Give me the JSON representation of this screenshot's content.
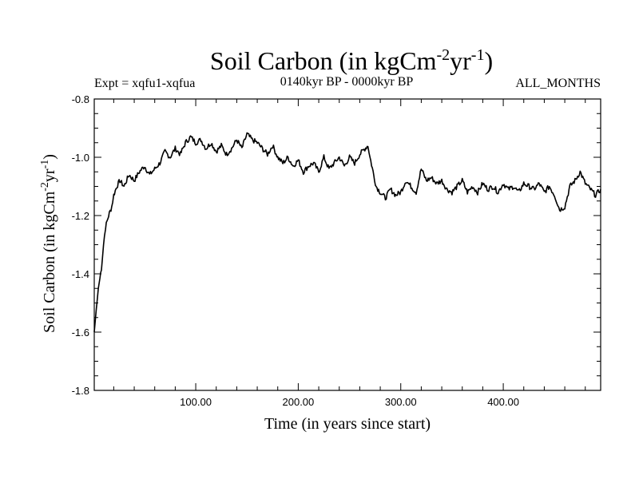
{
  "chart_data": {
    "type": "line",
    "title": "Soil Carbon (in kgCm",
    "title_sup1": "-2",
    "title_mid": "yr",
    "title_sup2": "-1",
    "title_end": ")",
    "subtitle_left": "Expt = xqfu1-xqfua",
    "subtitle_center": "0140kyr BP - 0000kyr BP",
    "subtitle_right": "ALL_MONTHS",
    "xlabel": "Time (in years since start)",
    "ylabel": "Soil Carbon (in kgCm",
    "ylabel_sup1": "-2",
    "ylabel_mid": "yr",
    "ylabel_sup2": "-1",
    "ylabel_end": ")",
    "xlim": [
      1,
      495
    ],
    "ylim": [
      -1.8,
      -0.8
    ],
    "xticks": [
      100,
      200,
      300,
      400
    ],
    "xtick_labels": [
      "100.00",
      "200.00",
      "300.00",
      "400.00"
    ],
    "yticks": [
      -0.8,
      -1.0,
      -1.2,
      -1.4,
      -1.6,
      -1.8
    ],
    "ytick_labels": [
      "-0.8",
      "-1.0",
      "-1.2",
      "-1.4",
      "-1.6",
      "-1.8"
    ],
    "grid": false,
    "series": [
      {
        "name": "soil carbon",
        "x": [
          1,
          3,
          5,
          8,
          10,
          12,
          15,
          18,
          20,
          23,
          26,
          30,
          35,
          40,
          45,
          50,
          55,
          60,
          65,
          70,
          75,
          80,
          85,
          90,
          95,
          100,
          105,
          110,
          115,
          120,
          125,
          130,
          135,
          140,
          145,
          150,
          155,
          160,
          165,
          170,
          175,
          180,
          185,
          190,
          195,
          200,
          205,
          210,
          215,
          220,
          225,
          230,
          235,
          240,
          245,
          250,
          255,
          260,
          265,
          268,
          270,
          273,
          276,
          280,
          285,
          290,
          295,
          300,
          305,
          310,
          315,
          320,
          325,
          330,
          335,
          340,
          345,
          350,
          355,
          360,
          365,
          370,
          375,
          380,
          385,
          390,
          395,
          400,
          405,
          410,
          415,
          420,
          425,
          430,
          435,
          440,
          445,
          450,
          455,
          460,
          465,
          470,
          475,
          480,
          485,
          490,
          495
        ],
        "values": [
          -1.6,
          -1.52,
          -1.45,
          -1.38,
          -1.3,
          -1.24,
          -1.2,
          -1.17,
          -1.13,
          -1.1,
          -1.08,
          -1.1,
          -1.06,
          -1.08,
          -1.05,
          -1.03,
          -1.06,
          -1.04,
          -1.02,
          -0.98,
          -1.0,
          -0.97,
          -0.99,
          -0.95,
          -0.93,
          -0.95,
          -0.94,
          -0.97,
          -0.95,
          -0.98,
          -0.96,
          -0.99,
          -0.97,
          -0.94,
          -0.97,
          -0.92,
          -0.94,
          -0.95,
          -0.97,
          -0.99,
          -0.96,
          -1.0,
          -1.02,
          -1.0,
          -1.03,
          -1.01,
          -1.05,
          -1.03,
          -1.02,
          -1.05,
          -1.0,
          -1.04,
          -1.02,
          -1.0,
          -1.03,
          -1.0,
          -1.02,
          -0.99,
          -0.97,
          -0.96,
          -1.0,
          -1.05,
          -1.1,
          -1.12,
          -1.14,
          -1.11,
          -1.13,
          -1.12,
          -1.08,
          -1.1,
          -1.12,
          -1.04,
          -1.08,
          -1.07,
          -1.09,
          -1.08,
          -1.11,
          -1.12,
          -1.1,
          -1.08,
          -1.12,
          -1.1,
          -1.12,
          -1.09,
          -1.11,
          -1.1,
          -1.12,
          -1.09,
          -1.11,
          -1.1,
          -1.12,
          -1.09,
          -1.1,
          -1.11,
          -1.09,
          -1.12,
          -1.1,
          -1.13,
          -1.18,
          -1.17,
          -1.1,
          -1.08,
          -1.05,
          -1.09,
          -1.11,
          -1.13,
          -1.11
        ]
      }
    ]
  }
}
